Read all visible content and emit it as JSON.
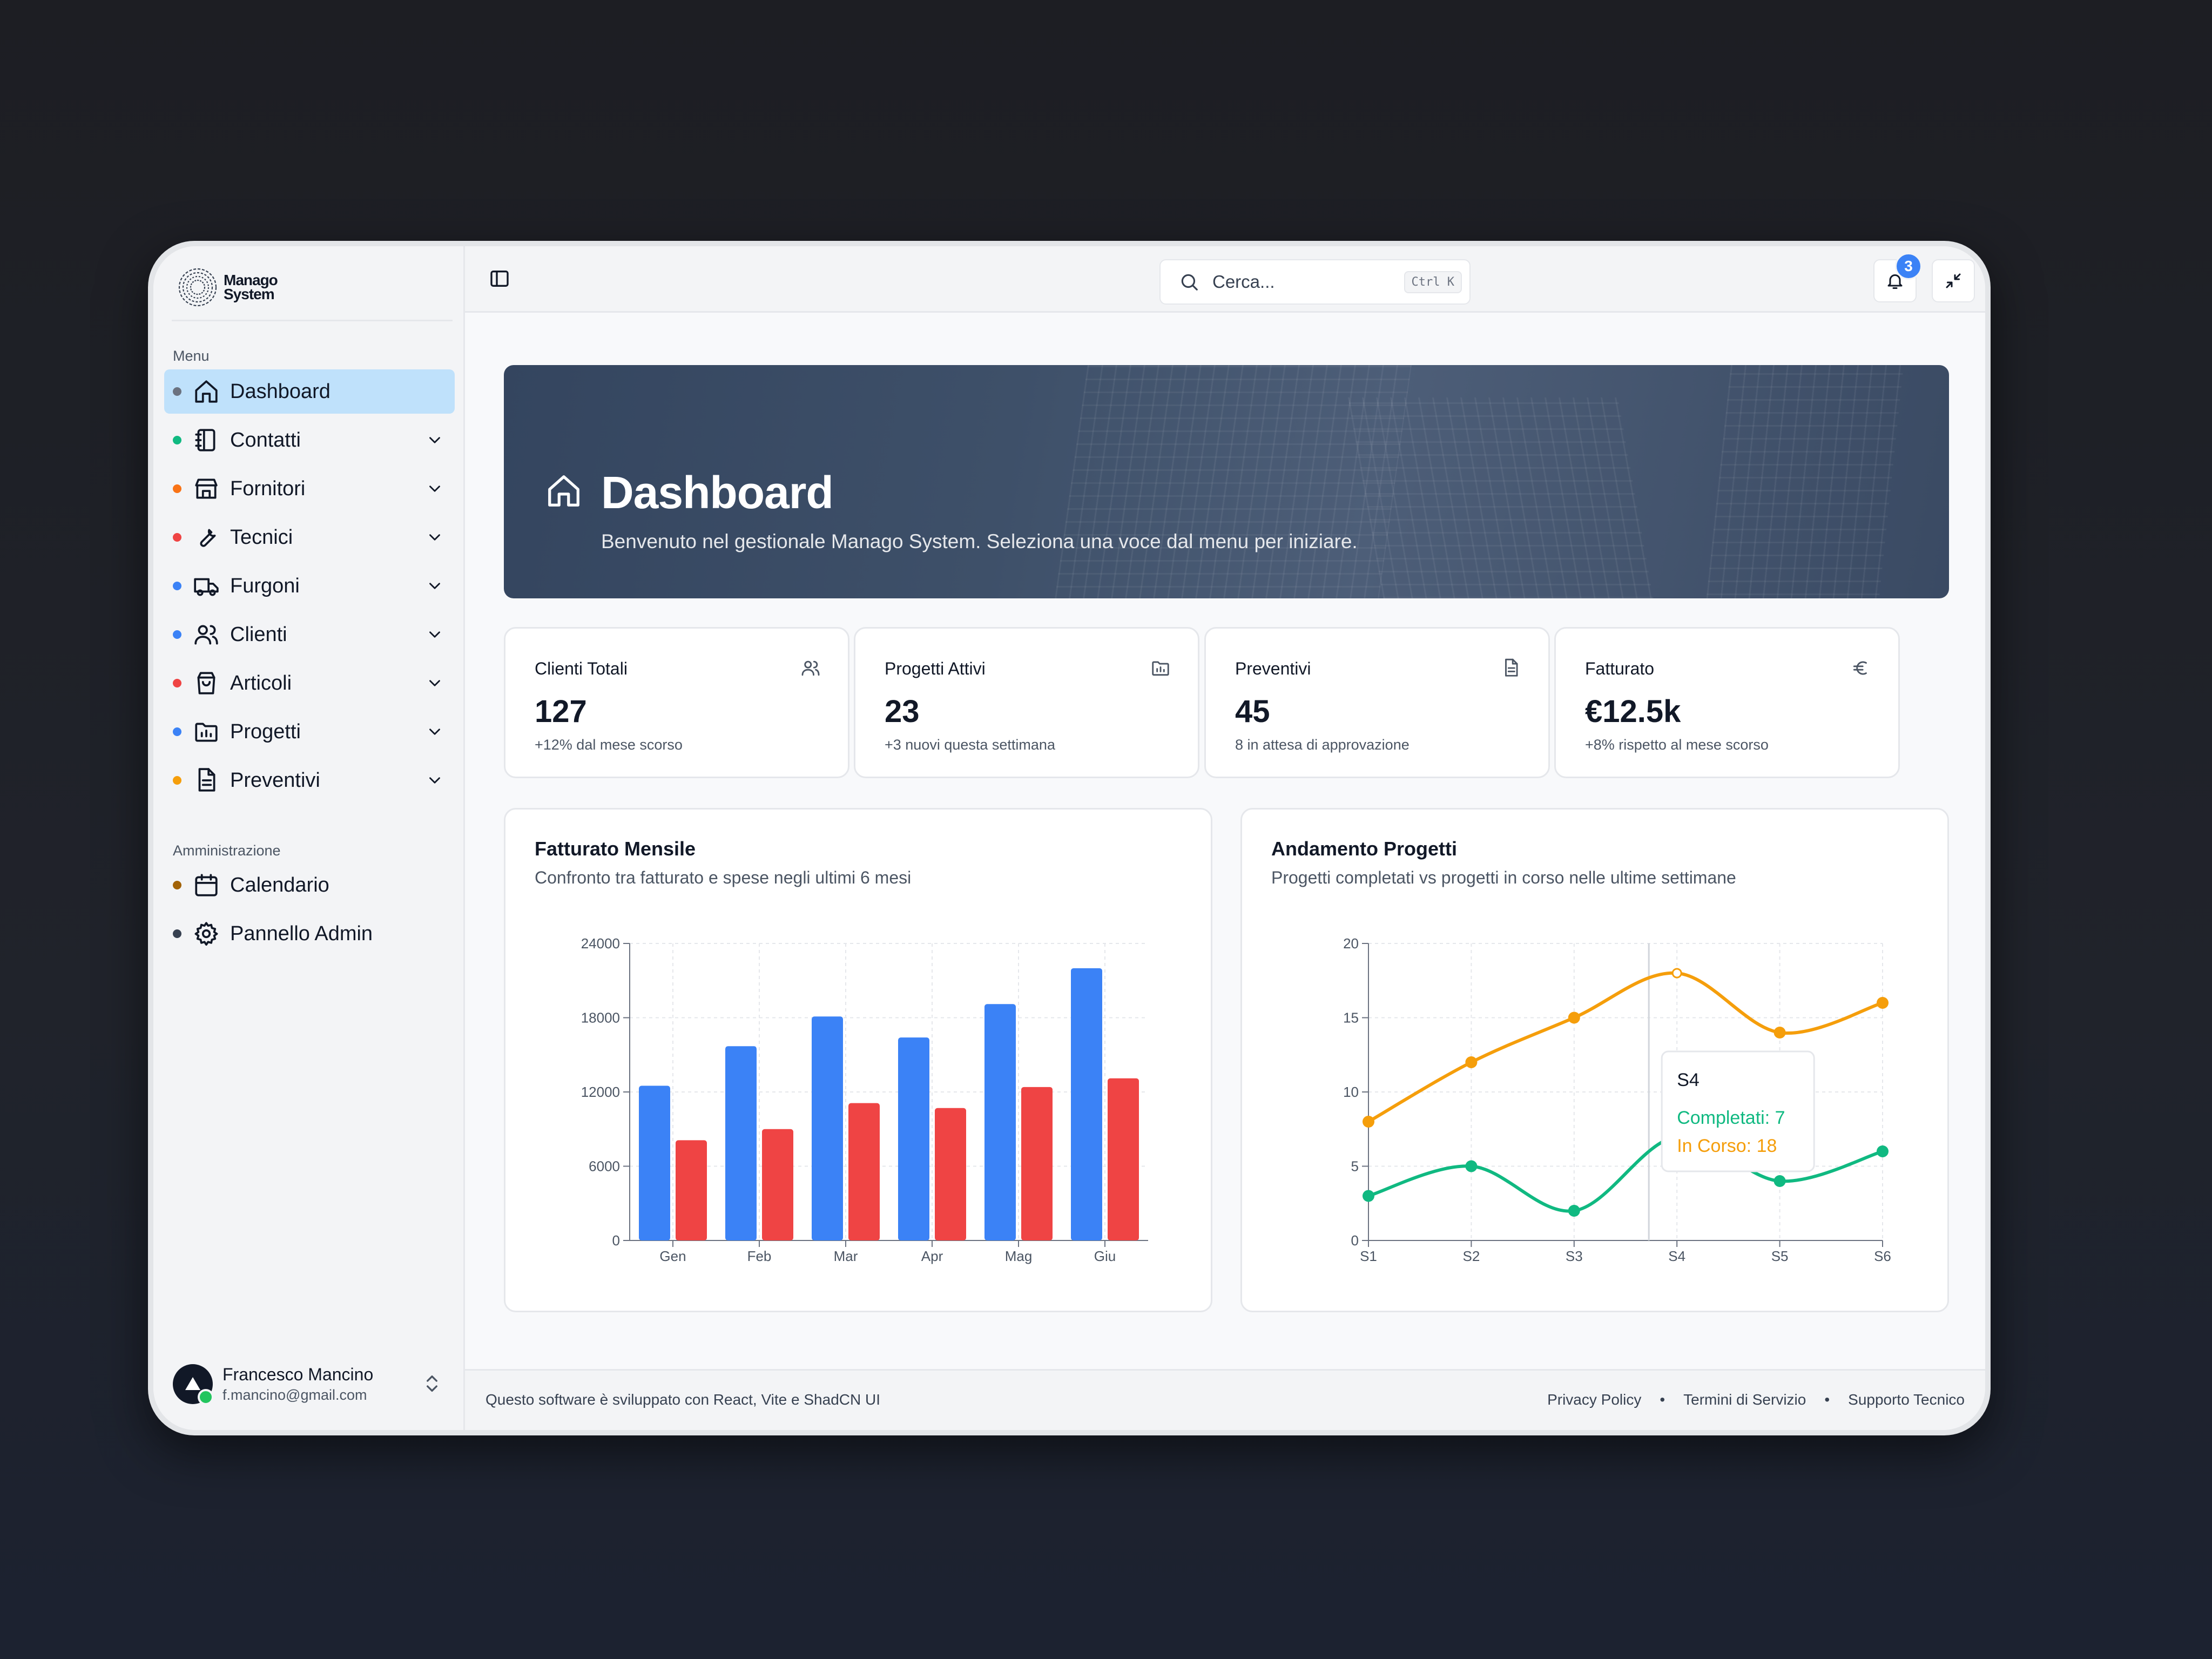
{
  "brand": {
    "line1": "Manago",
    "line2": "System"
  },
  "sidebar": {
    "menu_label": "Menu",
    "items": [
      {
        "label": "Dashboard",
        "icon": "home-icon",
        "dot": "#6b7280",
        "active": true
      },
      {
        "label": "Contatti",
        "icon": "notebook-icon",
        "dot": "#10b981"
      },
      {
        "label": "Fornitori",
        "icon": "store-icon",
        "dot": "#f97316"
      },
      {
        "label": "Tecnici",
        "icon": "wrench-icon",
        "dot": "#ef4444"
      },
      {
        "label": "Furgoni",
        "icon": "truck-icon",
        "dot": "#3b82f6"
      },
      {
        "label": "Clienti",
        "icon": "users-icon",
        "dot": "#3b82f6"
      },
      {
        "label": "Articoli",
        "icon": "shopping-bag-icon",
        "dot": "#ef4444"
      },
      {
        "label": "Progetti",
        "icon": "folder-chart-icon",
        "dot": "#3b82f6"
      },
      {
        "label": "Preventivi",
        "icon": "file-text-icon",
        "dot": "#f59e0b"
      }
    ],
    "admin_label": "Amministrazione",
    "admin_items": [
      {
        "label": "Calendario",
        "icon": "calendar-icon",
        "dot": "#a16207"
      },
      {
        "label": "Pannello Admin",
        "icon": "settings-icon",
        "dot": "#374151"
      }
    ],
    "user": {
      "name": "Francesco Mancino",
      "email": "f.mancino@gmail.com"
    }
  },
  "topbar": {
    "search_placeholder": "Cerca...",
    "search_shortcut": "Ctrl K",
    "notifications_count": "3"
  },
  "hero": {
    "title": "Dashboard",
    "subtitle": "Benvenuto nel gestionale Manago System. Seleziona una voce dal menu per iniziare."
  },
  "stats": [
    {
      "title": "Clienti Totali",
      "value": "127",
      "note": "+12% dal mese scorso",
      "icon": "users-icon"
    },
    {
      "title": "Progetti Attivi",
      "value": "23",
      "note": "+3 nuovi questa settimana",
      "icon": "folder-chart-icon"
    },
    {
      "title": "Preventivi",
      "value": "45",
      "note": "8 in attesa di approvazione",
      "icon": "file-text-icon"
    },
    {
      "title": "Fatturato",
      "value": "€12.5k",
      "note": "+8% rispetto al mese scorso",
      "icon": "euro-icon"
    }
  ],
  "revenue_card": {
    "title": "Fatturato Mensile",
    "subtitle": "Confronto tra fatturato e spese negli ultimi 6 mesi"
  },
  "projects_card": {
    "title": "Andamento Progetti",
    "subtitle": "Progetti completati vs progetti in corso nelle ultime settimane"
  },
  "chart_data": [
    {
      "type": "bar",
      "categories": [
        "Gen",
        "Feb",
        "Mar",
        "Apr",
        "Mag",
        "Giu"
      ],
      "series": [
        {
          "values": [
            12500,
            15700,
            18100,
            16400,
            19100,
            22000
          ],
          "color": "#3b82f6"
        },
        {
          "values": [
            8100,
            9000,
            11100,
            10700,
            12400,
            13100
          ],
          "color": "#ef4444"
        }
      ],
      "yticks": [
        "0",
        "6000",
        "12000",
        "18000",
        "24000"
      ],
      "ylim": [
        0,
        24000
      ],
      "grid": true
    },
    {
      "type": "line",
      "x": [
        "S1",
        "S2",
        "S3",
        "S4",
        "S5",
        "S6"
      ],
      "series": [
        {
          "name": "Completati",
          "values": [
            3,
            5,
            2,
            7,
            4,
            6
          ],
          "color": "#10b981"
        },
        {
          "name": "In Corso",
          "values": [
            8,
            12,
            15,
            18,
            14,
            16
          ],
          "color": "#f59e0b"
        }
      ],
      "yticks": [
        "0",
        "5",
        "10",
        "15",
        "20"
      ],
      "ylim": [
        0,
        20
      ],
      "grid": true,
      "tooltip": {
        "title": "S4",
        "line1": "Completati: 7",
        "line2": "In Corso: 18"
      }
    }
  ],
  "footer": {
    "left": "Questo software è sviluppato con React, Vite e ShadCN UI",
    "links": [
      "Privacy Policy",
      "Termini di Servizio",
      "Supporto Tecnico"
    ]
  }
}
